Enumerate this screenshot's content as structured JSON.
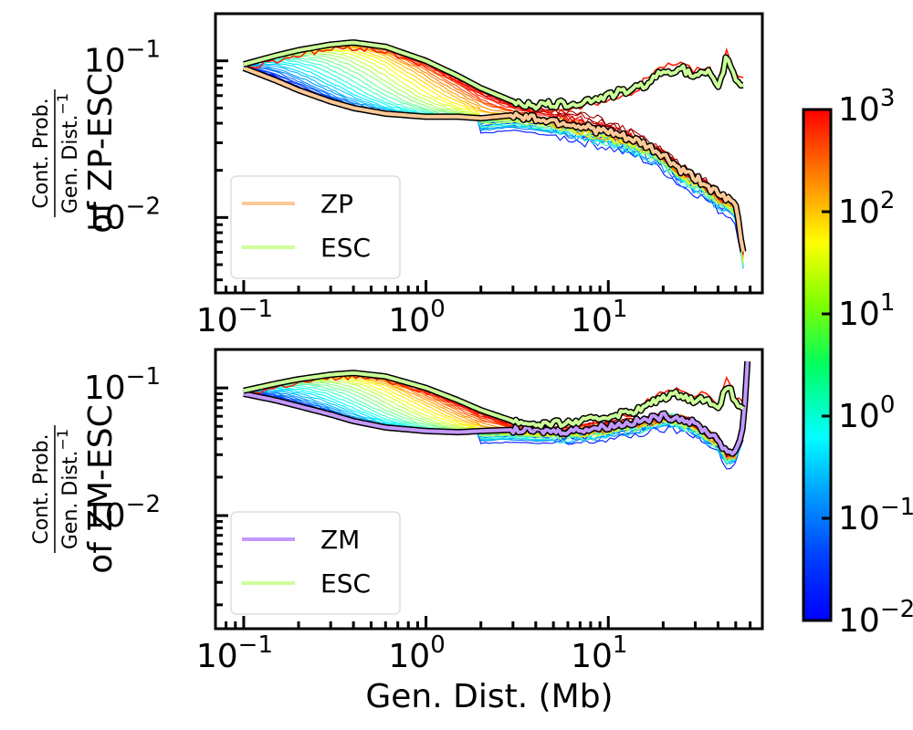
{
  "chart_data": [
    {
      "type": "line",
      "panel": "top",
      "xscale": "log",
      "yscale": "log",
      "xlim": [
        0.07,
        70
      ],
      "ylim": [
        0.0033,
        0.2
      ],
      "xlabel": "",
      "ylabel_fraction_numerator": "Cont. Prob.",
      "ylabel_fraction_denominator": "Gen. Dist.",
      "ylabel_fraction_denominator_exp": "−1",
      "ylabel_suffix": "of ZP-ESC",
      "x_ticks": [
        {
          "base": "10",
          "exp": "−1",
          "value": 0.1
        },
        {
          "base": "10",
          "exp": "0",
          "value": 1
        },
        {
          "base": "10",
          "exp": "1",
          "value": 10
        }
      ],
      "y_ticks": [
        {
          "base": "10",
          "exp": "−1",
          "value": 0.1
        },
        {
          "base": "10",
          "exp": "−2",
          "value": 0.01
        }
      ],
      "legend": {
        "placement": "lower-left",
        "entries": [
          {
            "label": "ZP",
            "color": "#fdc997"
          },
          {
            "label": "ESC",
            "color": "#ccff99"
          }
        ]
      },
      "series": [
        {
          "name": "ESC",
          "color": "#ccff99",
          "x": [
            0.1,
            0.15,
            0.2,
            0.3,
            0.4,
            0.6,
            1.0,
            1.5,
            2.0,
            3.0,
            4.0,
            6.0,
            8.0,
            10,
            15,
            20,
            25,
            30,
            35,
            40,
            45,
            50,
            55
          ],
          "y": [
            0.095,
            0.108,
            0.117,
            0.127,
            0.131,
            0.123,
            0.1,
            0.08,
            0.067,
            0.055,
            0.052,
            0.053,
            0.056,
            0.06,
            0.068,
            0.085,
            0.09,
            0.078,
            0.085,
            0.065,
            0.11,
            0.075,
            0.07
          ]
        },
        {
          "name": "ZP",
          "color": "#fdc997",
          "x": [
            0.1,
            0.15,
            0.2,
            0.3,
            0.4,
            0.6,
            1.0,
            1.5,
            2.0,
            3.0,
            4.0,
            6.0,
            8.0,
            10,
            15,
            20,
            25,
            30,
            35,
            40,
            45,
            50,
            55
          ],
          "y": [
            0.09,
            0.075,
            0.065,
            0.055,
            0.05,
            0.046,
            0.044,
            0.044,
            0.043,
            0.045,
            0.043,
            0.04,
            0.037,
            0.035,
            0.03,
            0.025,
            0.02,
            0.018,
            0.016,
            0.014,
            0.013,
            0.012,
            0.006
          ]
        }
      ]
    },
    {
      "type": "line",
      "panel": "bottom",
      "xscale": "log",
      "yscale": "log",
      "xlim": [
        0.07,
        70
      ],
      "ylim": [
        0.0013,
        0.2
      ],
      "xlabel": "Gen. Dist. (Mb)",
      "ylabel_fraction_numerator": "Cont. Prob.",
      "ylabel_fraction_denominator": "Gen. Dist.",
      "ylabel_fraction_denominator_exp": "−1",
      "ylabel_suffix": "of ZM-ESC",
      "x_ticks": [
        {
          "base": "10",
          "exp": "−1",
          "value": 0.1
        },
        {
          "base": "10",
          "exp": "0",
          "value": 1
        },
        {
          "base": "10",
          "exp": "1",
          "value": 10
        }
      ],
      "y_ticks": [
        {
          "base": "10",
          "exp": "−1",
          "value": 0.1
        },
        {
          "base": "10",
          "exp": "−2",
          "value": 0.01
        }
      ],
      "legend": {
        "placement": "lower-left",
        "entries": [
          {
            "label": "ZM",
            "color": "#c399ff"
          },
          {
            "label": "ESC",
            "color": "#ccff99"
          }
        ]
      },
      "series": [
        {
          "name": "ESC",
          "color": "#ccff99",
          "x": [
            0.1,
            0.15,
            0.2,
            0.3,
            0.4,
            0.6,
            1.0,
            1.5,
            2.0,
            3.0,
            4.0,
            6.0,
            8.0,
            10,
            15,
            20,
            25,
            30,
            35,
            40,
            45,
            50,
            55
          ],
          "y": [
            0.095,
            0.108,
            0.117,
            0.127,
            0.131,
            0.123,
            0.1,
            0.08,
            0.067,
            0.055,
            0.052,
            0.053,
            0.056,
            0.06,
            0.068,
            0.085,
            0.09,
            0.078,
            0.085,
            0.065,
            0.11,
            0.075,
            0.07
          ]
        },
        {
          "name": "ZM",
          "color": "#c399ff",
          "x": [
            0.1,
            0.15,
            0.2,
            0.3,
            0.4,
            0.6,
            1.0,
            1.5,
            2.0,
            3.0,
            4.0,
            6.0,
            8.0,
            10,
            15,
            20,
            25,
            30,
            35,
            40,
            45,
            50,
            55,
            58
          ],
          "y": [
            0.09,
            0.08,
            0.072,
            0.062,
            0.055,
            0.049,
            0.046,
            0.045,
            0.046,
            0.047,
            0.046,
            0.046,
            0.048,
            0.05,
            0.055,
            0.06,
            0.058,
            0.052,
            0.045,
            0.04,
            0.03,
            0.032,
            0.05,
            0.16
          ]
        }
      ]
    }
  ],
  "colorbar": {
    "scale": "log",
    "range": [
      0.01,
      1000
    ],
    "colormap": "jet",
    "ticks": [
      {
        "base": "10",
        "exp": "3",
        "value": 1000
      },
      {
        "base": "10",
        "exp": "2",
        "value": 100
      },
      {
        "base": "10",
        "exp": "1",
        "value": 10
      },
      {
        "base": "10",
        "exp": "0",
        "value": 1
      },
      {
        "base": "10",
        "exp": "−1",
        "value": 0.1
      },
      {
        "base": "10",
        "exp": "−2",
        "value": 0.01
      }
    ]
  }
}
